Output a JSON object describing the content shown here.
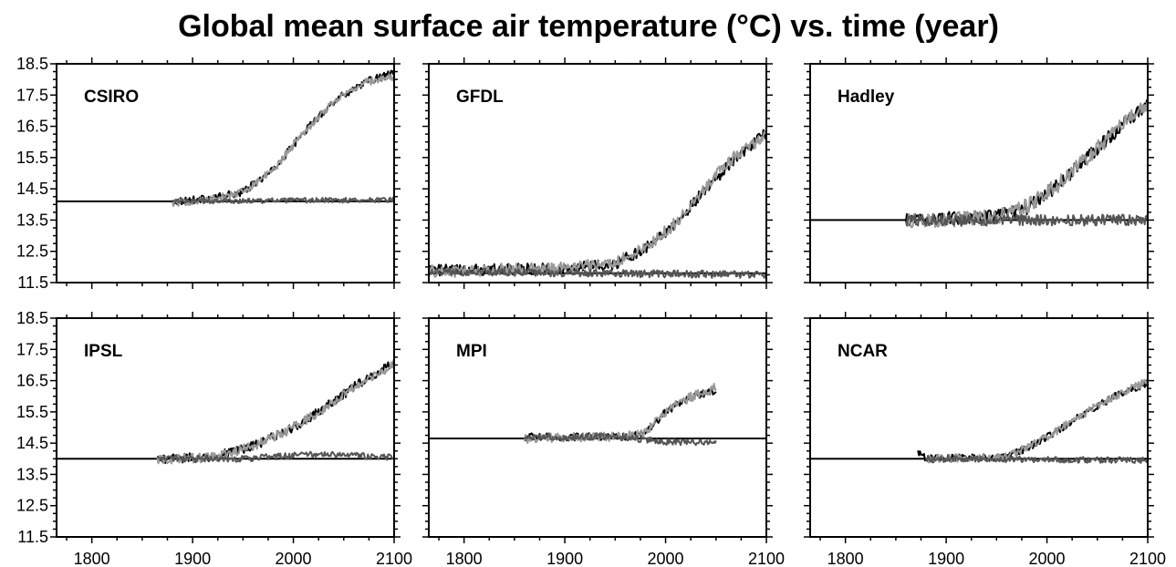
{
  "title": "Global mean surface air temperature (°C) vs. time (year)",
  "chart_data": [
    {
      "type": "line",
      "name": "CSIRO",
      "xlim": [
        1765,
        2100
      ],
      "ylim": [
        11.5,
        18.5
      ],
      "yticks": [
        11.5,
        12.5,
        13.5,
        14.5,
        15.5,
        16.5,
        17.5,
        18.5
      ],
      "xticks": [
        1800,
        1900,
        2000,
        2100
      ],
      "baseline": 14.1,
      "series": [
        {
          "color": "#000000",
          "noise": 0.12,
          "x": [
            1880,
            1920,
            1950,
            1980,
            2010,
            2040,
            2070,
            2100
          ],
          "y": [
            14.1,
            14.2,
            14.4,
            15.1,
            16.3,
            17.3,
            17.9,
            18.2
          ]
        },
        {
          "color": "#999999",
          "noise": 0.12,
          "x": [
            1880,
            1920,
            1950,
            1980,
            2010,
            2040,
            2070,
            2100
          ],
          "y": [
            14.05,
            14.15,
            14.4,
            15.1,
            16.3,
            17.3,
            17.9,
            18.1
          ]
        },
        {
          "color": "#555555",
          "noise": 0.08,
          "x": [
            1880,
            2100
          ],
          "y": [
            14.1,
            14.15
          ]
        }
      ]
    },
    {
      "type": "line",
      "name": "GFDL",
      "xlim": [
        1765,
        2100
      ],
      "ylim": [
        11.5,
        18.5
      ],
      "yticks": [
        11.5,
        12.5,
        13.5,
        14.5,
        15.5,
        16.5,
        17.5,
        18.5
      ],
      "xticks": [
        1800,
        1900,
        2000,
        2100
      ],
      "baseline": 11.8,
      "series": [
        {
          "color": "#000000",
          "noise": 0.18,
          "x": [
            1765,
            1900,
            1950,
            1980,
            2010,
            2040,
            2070,
            2100
          ],
          "y": [
            11.9,
            11.95,
            12.1,
            12.6,
            13.4,
            14.5,
            15.5,
            16.3
          ]
        },
        {
          "color": "#999999",
          "noise": 0.2,
          "x": [
            1765,
            1900,
            1950,
            1980,
            2010,
            2040,
            2070,
            2100
          ],
          "y": [
            11.85,
            11.95,
            12.15,
            12.6,
            13.4,
            14.6,
            15.6,
            16.2
          ]
        },
        {
          "color": "#555555",
          "noise": 0.12,
          "x": [
            1765,
            2100
          ],
          "y": [
            11.85,
            11.75
          ]
        }
      ]
    },
    {
      "type": "line",
      "name": "Hadley",
      "xlim": [
        1765,
        2100
      ],
      "ylim": [
        11.5,
        18.5
      ],
      "yticks": [
        11.5,
        12.5,
        13.5,
        14.5,
        15.5,
        16.5,
        17.5,
        18.5
      ],
      "xticks": [
        1800,
        1900,
        2000,
        2100
      ],
      "baseline": 13.5,
      "series": [
        {
          "color": "#000000",
          "noise": 0.22,
          "x": [
            1860,
            1950,
            1980,
            2010,
            2040,
            2070,
            2100
          ],
          "y": [
            13.5,
            13.6,
            13.9,
            14.6,
            15.5,
            16.4,
            17.2
          ]
        },
        {
          "color": "#999999",
          "noise": 0.25,
          "x": [
            1860,
            1950,
            1980,
            2010,
            2040,
            2070,
            2100
          ],
          "y": [
            13.45,
            13.6,
            13.95,
            14.6,
            15.5,
            16.4,
            17.3
          ]
        },
        {
          "color": "#555555",
          "noise": 0.18,
          "x": [
            1860,
            2100
          ],
          "y": [
            13.5,
            13.5
          ]
        }
      ]
    },
    {
      "type": "line",
      "name": "IPSL",
      "xlim": [
        1765,
        2100
      ],
      "ylim": [
        11.5,
        18.5
      ],
      "yticks": [
        11.5,
        12.5,
        13.5,
        14.5,
        15.5,
        16.5,
        17.5,
        18.5
      ],
      "xticks": [
        1800,
        1900,
        2000,
        2100
      ],
      "baseline": 14.0,
      "series": [
        {
          "color": "#000000",
          "noise": 0.15,
          "x": [
            1865,
            1920,
            1960,
            2000,
            2030,
            2060,
            2100
          ],
          "y": [
            14.0,
            14.05,
            14.4,
            15.0,
            15.6,
            16.3,
            17.1
          ]
        },
        {
          "color": "#999999",
          "noise": 0.15,
          "x": [
            1865,
            1920,
            1960,
            2000,
            2030,
            2060,
            2100
          ],
          "y": [
            13.95,
            14.05,
            14.4,
            15.0,
            15.6,
            16.3,
            17.0
          ]
        },
        {
          "color": "#555555",
          "noise": 0.1,
          "x": [
            1865,
            1950,
            2020,
            2100
          ],
          "y": [
            14.0,
            14.0,
            14.15,
            14.05
          ]
        }
      ]
    },
    {
      "type": "line",
      "name": "MPI",
      "xlim": [
        1765,
        2100
      ],
      "ylim": [
        11.5,
        18.5
      ],
      "yticks": [
        11.5,
        12.5,
        13.5,
        14.5,
        15.5,
        16.5,
        17.5,
        18.5
      ],
      "xticks": [
        1800,
        1900,
        2000,
        2100
      ],
      "baseline": 14.65,
      "series": [
        {
          "color": "#000000",
          "noise": 0.12,
          "x": [
            1860,
            1960,
            1980,
            2000,
            2020,
            2050
          ],
          "y": [
            14.7,
            14.7,
            14.8,
            15.5,
            15.9,
            16.2
          ]
        },
        {
          "color": "#999999",
          "noise": 0.15,
          "x": [
            1860,
            1960,
            1980,
            2000,
            2020,
            2050
          ],
          "y": [
            14.65,
            14.7,
            14.85,
            15.5,
            15.9,
            16.3
          ]
        },
        {
          "color": "#555555",
          "noise": 0.1,
          "x": [
            1860,
            1950,
            2000,
            2050
          ],
          "y": [
            14.7,
            14.7,
            14.55,
            14.5
          ]
        }
      ]
    },
    {
      "type": "line",
      "name": "NCAR",
      "xlim": [
        1765,
        2100
      ],
      "ylim": [
        11.5,
        18.5
      ],
      "yticks": [
        11.5,
        12.5,
        13.5,
        14.5,
        15.5,
        16.5,
        17.5,
        18.5
      ],
      "xticks": [
        1800,
        1900,
        2000,
        2100
      ],
      "baseline": 14.0,
      "series": [
        {
          "color": "#000000",
          "noise": 0.12,
          "x": [
            1872,
            1880,
            1960,
            1990,
            2020,
            2050,
            2080,
            2100
          ],
          "y": [
            14.25,
            14.0,
            14.05,
            14.5,
            15.1,
            15.7,
            16.2,
            16.4
          ]
        },
        {
          "color": "#999999",
          "noise": 0.13,
          "x": [
            1880,
            1960,
            1990,
            2020,
            2050,
            2080,
            2100
          ],
          "y": [
            14.0,
            14.05,
            14.5,
            15.1,
            15.7,
            16.2,
            16.5
          ]
        },
        {
          "color": "#555555",
          "noise": 0.1,
          "x": [
            1880,
            2100
          ],
          "y": [
            14.0,
            13.95
          ]
        }
      ]
    }
  ]
}
